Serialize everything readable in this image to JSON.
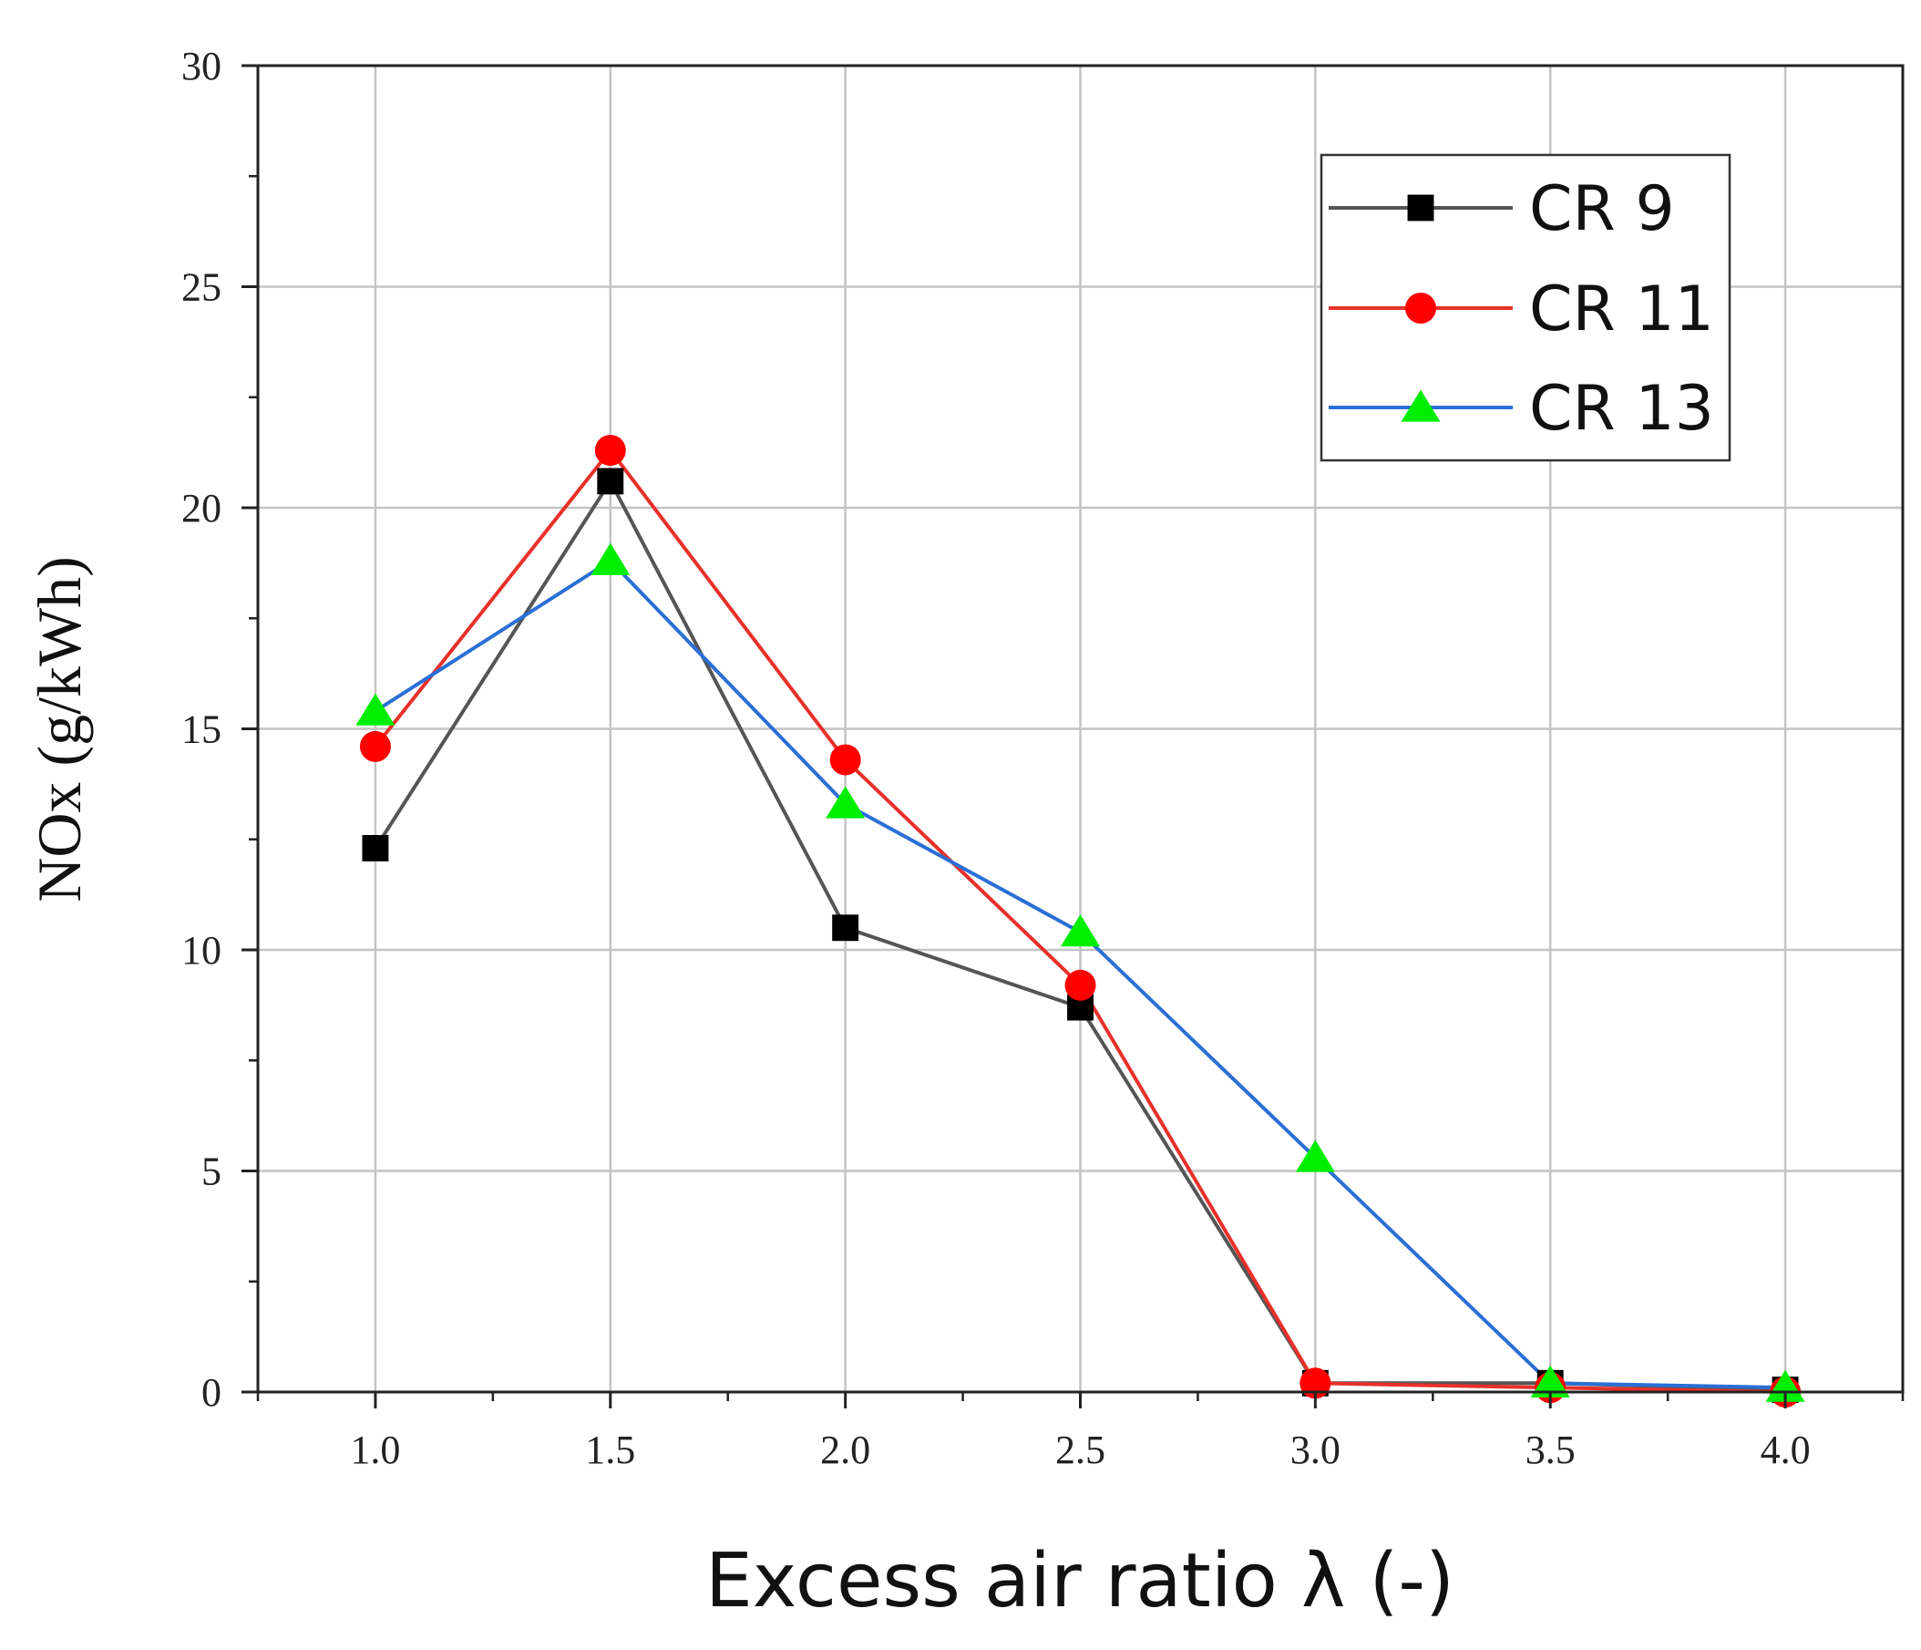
{
  "chart_data": {
    "type": "line",
    "title": "",
    "xlabel": "Excess air ratio λ (-)",
    "ylabel": "NOx (g/kWh)",
    "x": [
      1.0,
      1.5,
      2.0,
      2.5,
      3.0,
      3.5,
      4.0
    ],
    "xlim": [
      0.75,
      4.25
    ],
    "ylim": [
      0,
      30
    ],
    "x_ticks": [
      1.0,
      1.5,
      2.0,
      2.5,
      3.0,
      3.5,
      4.0
    ],
    "x_tick_labels": [
      "1.0",
      "1.5",
      "2.0",
      "2.5",
      "3.0",
      "3.5",
      "4.0"
    ],
    "y_ticks": [
      0,
      5,
      10,
      15,
      20,
      25,
      30
    ],
    "y_tick_labels": [
      "0",
      "5",
      "10",
      "15",
      "20",
      "25",
      "30"
    ],
    "grid": true,
    "legend_position": "top-right",
    "series": [
      {
        "name": "CR 9",
        "color": "#555555",
        "marker": "square",
        "marker_color": "#000000",
        "values": [
          12.3,
          20.6,
          10.5,
          8.7,
          0.2,
          0.2,
          0.05
        ]
      },
      {
        "name": "CR 11",
        "color": "#e8302a",
        "marker": "circle",
        "marker_color": "#ff0000",
        "values": [
          14.6,
          21.3,
          14.3,
          9.2,
          0.2,
          0.1,
          0.0
        ]
      },
      {
        "name": "CR 13",
        "color": "#2b6fd6",
        "marker": "triangle",
        "marker_color": "#00ee00",
        "values": [
          15.4,
          18.8,
          13.3,
          10.4,
          5.3,
          0.2,
          0.1
        ]
      }
    ]
  }
}
